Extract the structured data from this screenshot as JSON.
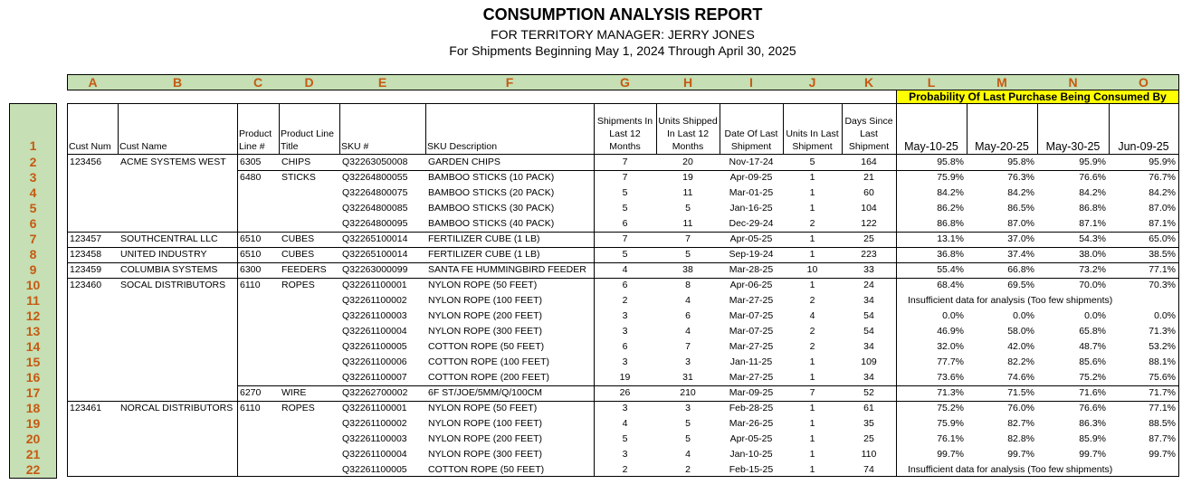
{
  "report": {
    "title": "CONSUMPTION ANALYSIS REPORT",
    "subtitle": "FOR TERRITORY MANAGER: JERRY JONES",
    "period": "For Shipments Beginning May 1, 2024 Through April 30, 2025"
  },
  "column_letters": [
    "A",
    "B",
    "C",
    "D",
    "E",
    "F",
    "G",
    "H",
    "I",
    "J",
    "K",
    "L",
    "M",
    "N",
    "O"
  ],
  "probability_banner": "Probability Of Last Purchase Being Consumed By",
  "colors": {
    "header_green": "#c6dfb4",
    "letter_orange": "#c55a11",
    "banner_yellow": "#ffff00"
  },
  "headers": [
    "Cust Num",
    "Cust Name",
    "Product Line #",
    "Product Line Title",
    "SKU #",
    "SKU Description",
    "Shipments In Last 12 Months",
    "Units Shipped In Last 12 Months",
    "Date Of Last Shipment",
    "Units In Last Shipment",
    "Days Since Last Shipment",
    "May-10-25",
    "May-20-25",
    "May-30-25",
    "Jun-09-25"
  ],
  "row_numbers": [
    "1",
    "2",
    "3",
    "4",
    "5",
    "6",
    "7",
    "8",
    "9",
    "10",
    "11",
    "12",
    "13",
    "14",
    "15",
    "16",
    "17",
    "18",
    "19",
    "20",
    "21",
    "22"
  ],
  "rows": [
    {
      "cust_num": "123456",
      "cust_name": "ACME SYSTEMS WEST",
      "pl": "6305",
      "pl_title": "CHIPS",
      "sku": "Q32263050008",
      "desc": "GARDEN CHIPS",
      "ship": "7",
      "units": "20",
      "date": "Nov-17-24",
      "last_units": "5",
      "days": "164",
      "p": [
        "95.8%",
        "95.8%",
        "95.9%",
        "95.9%"
      ]
    },
    {
      "pl": "6480",
      "pl_title": "STICKS",
      "sku": "Q32264800055",
      "desc": "BAMBOO STICKS (10 PACK)",
      "ship": "7",
      "units": "19",
      "date": "Apr-09-25",
      "last_units": "1",
      "days": "21",
      "p": [
        "75.9%",
        "76.3%",
        "76.6%",
        "76.7%"
      ]
    },
    {
      "sku": "Q32264800075",
      "desc": "BAMBOO STICKS (20 PACK)",
      "ship": "5",
      "units": "11",
      "date": "Mar-01-25",
      "last_units": "1",
      "days": "60",
      "p": [
        "84.2%",
        "84.2%",
        "84.2%",
        "84.2%"
      ]
    },
    {
      "sku": "Q32264800085",
      "desc": "BAMBOO STICKS (30 PACK)",
      "ship": "5",
      "units": "5",
      "date": "Jan-16-25",
      "last_units": "1",
      "days": "104",
      "p": [
        "86.2%",
        "86.5%",
        "86.8%",
        "87.0%"
      ]
    },
    {
      "sku": "Q32264800095",
      "desc": "BAMBOO STICKS (40 PACK)",
      "ship": "6",
      "units": "11",
      "date": "Dec-29-24",
      "last_units": "2",
      "days": "122",
      "p": [
        "86.8%",
        "87.0%",
        "87.1%",
        "87.1%"
      ]
    },
    {
      "cust_num": "123457",
      "cust_name": "SOUTHCENTRAL LLC",
      "pl": "6510",
      "pl_title": "CUBES",
      "sku": "Q32265100014",
      "desc": "FERTILIZER CUBE (1 LB)",
      "ship": "7",
      "units": "7",
      "date": "Apr-05-25",
      "last_units": "1",
      "days": "25",
      "p": [
        "13.1%",
        "37.0%",
        "54.3%",
        "65.0%"
      ]
    },
    {
      "cust_num": "123458",
      "cust_name": "UNITED INDUSTRY",
      "pl": "6510",
      "pl_title": "CUBES",
      "sku": "Q32265100014",
      "desc": "FERTILIZER CUBE (1 LB)",
      "ship": "5",
      "units": "5",
      "date": "Sep-19-24",
      "last_units": "1",
      "days": "223",
      "p": [
        "36.8%",
        "37.4%",
        "38.0%",
        "38.5%"
      ]
    },
    {
      "cust_num": "123459",
      "cust_name": "COLUMBIA SYSTEMS",
      "pl": "6300",
      "pl_title": "FEEDERS",
      "sku": "Q32263000099",
      "desc": "SANTA FE HUMMINGBIRD FEEDER",
      "ship": "4",
      "units": "38",
      "date": "Mar-28-25",
      "last_units": "10",
      "days": "33",
      "p": [
        "55.4%",
        "66.8%",
        "73.2%",
        "77.1%"
      ]
    },
    {
      "cust_num": "123460",
      "cust_name": "SOCAL DISTRIBUTORS",
      "pl": "6110",
      "pl_title": "ROPES",
      "sku": "Q32261100001",
      "desc": "NYLON ROPE (50 FEET)",
      "ship": "6",
      "units": "8",
      "date": "Apr-06-25",
      "last_units": "1",
      "days": "24",
      "p": [
        "68.4%",
        "69.5%",
        "70.0%",
        "70.3%"
      ]
    },
    {
      "sku": "Q32261100002",
      "desc": "NYLON ROPE (100 FEET)",
      "ship": "2",
      "units": "4",
      "date": "Mar-27-25",
      "last_units": "2",
      "days": "34",
      "note": "Insufficient data for analysis (Too few shipments)"
    },
    {
      "sku": "Q32261100003",
      "desc": "NYLON ROPE (200 FEET)",
      "ship": "3",
      "units": "6",
      "date": "Mar-07-25",
      "last_units": "4",
      "days": "54",
      "p": [
        "0.0%",
        "0.0%",
        "0.0%",
        "0.0%"
      ]
    },
    {
      "sku": "Q32261100004",
      "desc": "NYLON ROPE (300 FEET)",
      "ship": "3",
      "units": "4",
      "date": "Mar-07-25",
      "last_units": "2",
      "days": "54",
      "p": [
        "46.9%",
        "58.0%",
        "65.8%",
        "71.3%"
      ]
    },
    {
      "sku": "Q32261100005",
      "desc": "COTTON ROPE (50 FEET)",
      "ship": "6",
      "units": "7",
      "date": "Mar-27-25",
      "last_units": "2",
      "days": "34",
      "p": [
        "32.0%",
        "42.0%",
        "48.7%",
        "53.2%"
      ]
    },
    {
      "sku": "Q32261100006",
      "desc": "COTTON ROPE (100 FEET)",
      "ship": "3",
      "units": "3",
      "date": "Jan-11-25",
      "last_units": "1",
      "days": "109",
      "p": [
        "77.7%",
        "82.2%",
        "85.6%",
        "88.1%"
      ]
    },
    {
      "sku": "Q32261100007",
      "desc": "COTTON ROPE (200 FEET)",
      "ship": "19",
      "units": "31",
      "date": "Mar-27-25",
      "last_units": "1",
      "days": "34",
      "p": [
        "73.6%",
        "74.6%",
        "75.2%",
        "75.6%"
      ]
    },
    {
      "pl": "6270",
      "pl_title": "WIRE",
      "sku": "Q32262700002",
      "desc": "6F ST/JOE/5MM/Q/100CM",
      "ship": "26",
      "units": "210",
      "date": "Mar-09-25",
      "last_units": "7",
      "days": "52",
      "p": [
        "71.3%",
        "71.5%",
        "71.6%",
        "71.7%"
      ]
    },
    {
      "cust_num": "123461",
      "cust_name": "NORCAL DISTRIBUTORS",
      "pl": "6110",
      "pl_title": "ROPES",
      "sku": "Q32261100001",
      "desc": "NYLON ROPE (50 FEET)",
      "ship": "3",
      "units": "3",
      "date": "Feb-28-25",
      "last_units": "1",
      "days": "61",
      "p": [
        "75.2%",
        "76.0%",
        "76.6%",
        "77.1%"
      ]
    },
    {
      "sku": "Q32261100002",
      "desc": "NYLON ROPE (100 FEET)",
      "ship": "4",
      "units": "5",
      "date": "Mar-26-25",
      "last_units": "1",
      "days": "35",
      "p": [
        "75.9%",
        "82.7%",
        "86.3%",
        "88.5%"
      ]
    },
    {
      "sku": "Q32261100003",
      "desc": "NYLON ROPE (200 FEET)",
      "ship": "5",
      "units": "5",
      "date": "Apr-05-25",
      "last_units": "1",
      "days": "25",
      "p": [
        "76.1%",
        "82.8%",
        "85.9%",
        "87.7%"
      ]
    },
    {
      "sku": "Q32261100004",
      "desc": "NYLON ROPE (300 FEET)",
      "ship": "3",
      "units": "4",
      "date": "Jan-10-25",
      "last_units": "1",
      "days": "110",
      "p": [
        "99.7%",
        "99.7%",
        "99.7%",
        "99.7%"
      ]
    },
    {
      "sku": "Q32261100005",
      "desc": "COTTON ROPE (50 FEET)",
      "ship": "2",
      "units": "2",
      "date": "Feb-15-25",
      "last_units": "1",
      "days": "74",
      "note": "Insufficient data for analysis (Too few shipments)"
    }
  ]
}
